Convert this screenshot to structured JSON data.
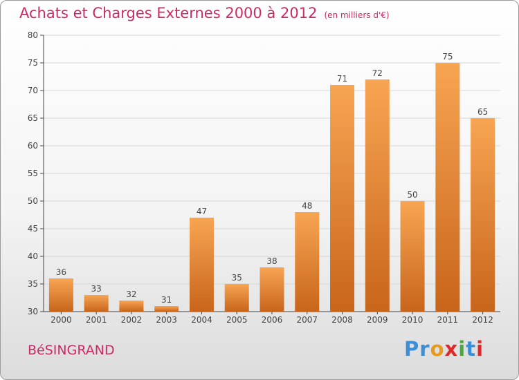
{
  "header": {
    "title": "Achats et Charges Externes 2000 à 2012",
    "unit": "(en milliers d'€)"
  },
  "footer": {
    "commune": "BéSINGRAND",
    "logo_letters": [
      {
        "ch": "P",
        "color": "#3a8fd8"
      },
      {
        "ch": "r",
        "color": "#3a8fd8"
      },
      {
        "ch": "o",
        "color": "#e79a1e"
      },
      {
        "ch": "x",
        "color": "#e0282a"
      },
      {
        "ch": "i",
        "color": "#49a93e"
      },
      {
        "ch": "t",
        "color": "#3a8fd8"
      },
      {
        "ch": "i",
        "color": "#e0282a"
      }
    ]
  },
  "chart_data": {
    "type": "bar",
    "title": "Achats et Charges Externes 2000 à 2012",
    "subtitle": "(en milliers d'€)",
    "categories": [
      "2000",
      "2001",
      "2002",
      "2003",
      "2004",
      "2005",
      "2006",
      "2007",
      "2008",
      "2009",
      "2010",
      "2011",
      "2012"
    ],
    "values": [
      36,
      33,
      32,
      31,
      47,
      35,
      38,
      48,
      71,
      72,
      50,
      75,
      65
    ],
    "ylim": [
      30,
      80
    ],
    "yticks": [
      30,
      35,
      40,
      45,
      50,
      55,
      60,
      65,
      70,
      75,
      80
    ],
    "grid": true,
    "bar_color_top": "#f7a553",
    "bar_color_bottom": "#c8651b"
  }
}
